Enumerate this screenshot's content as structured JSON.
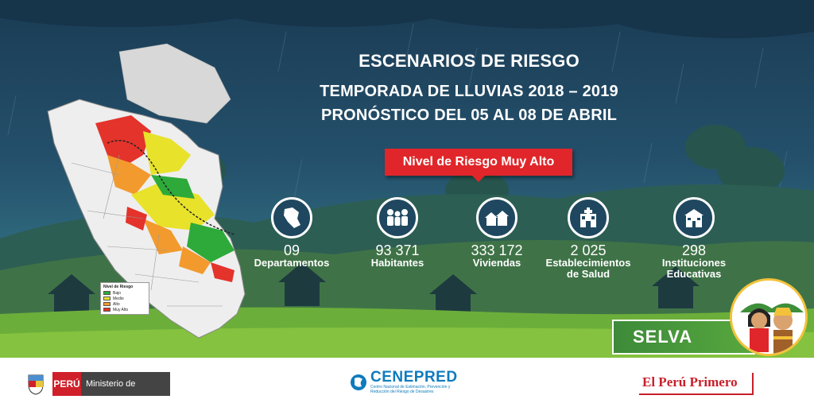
{
  "title_line1": "ESCENARIOS DE RIESGO",
  "title_line2": "TEMPORADA DE LLUVIAS 2018 – 2019",
  "title_line3": "PRONÓSTICO DEL 05 AL 08 DE ABRIL",
  "risk_level": "Nivel de Riesgo Muy Alto",
  "legend": {
    "title": "Nivel de Riesgo",
    "items": [
      {
        "label": "Bajo",
        "color": "#2eaa3a"
      },
      {
        "label": "Medio",
        "color": "#e8e22a"
      },
      {
        "label": "Alto",
        "color": "#f29a2e"
      },
      {
        "label": "Muy Alto",
        "color": "#e3332b"
      }
    ]
  },
  "stats": [
    {
      "number": "09",
      "label1": "Departamentos",
      "label2": "",
      "icon": "peru-map-icon"
    },
    {
      "number": "93 371",
      "label1": "Habitantes",
      "label2": "",
      "icon": "people-icon"
    },
    {
      "number": "333 172",
      "label1": "Viviendas",
      "label2": "",
      "icon": "houses-icon"
    },
    {
      "number": "2 025",
      "label1": "Establecimientos",
      "label2": "de Salud",
      "icon": "hospital-icon"
    },
    {
      "number": "298",
      "label1": "Instituciones",
      "label2": "Educativas",
      "icon": "school-icon"
    }
  ],
  "region": "SELVA",
  "footer": {
    "peru": "PERÚ",
    "ministry": "Ministerio de Defensa",
    "cenepred": "CENEPRED",
    "cenepred_sub": "Centro Nacional de Estimación, Prevención y Reducción del Riesgo de Desastres",
    "slogan": "El Perú Primero"
  },
  "colors": {
    "risk_red": "#e0262a",
    "selva_green": "#4b9a3c",
    "cenepred_blue": "#0e7bbd"
  }
}
